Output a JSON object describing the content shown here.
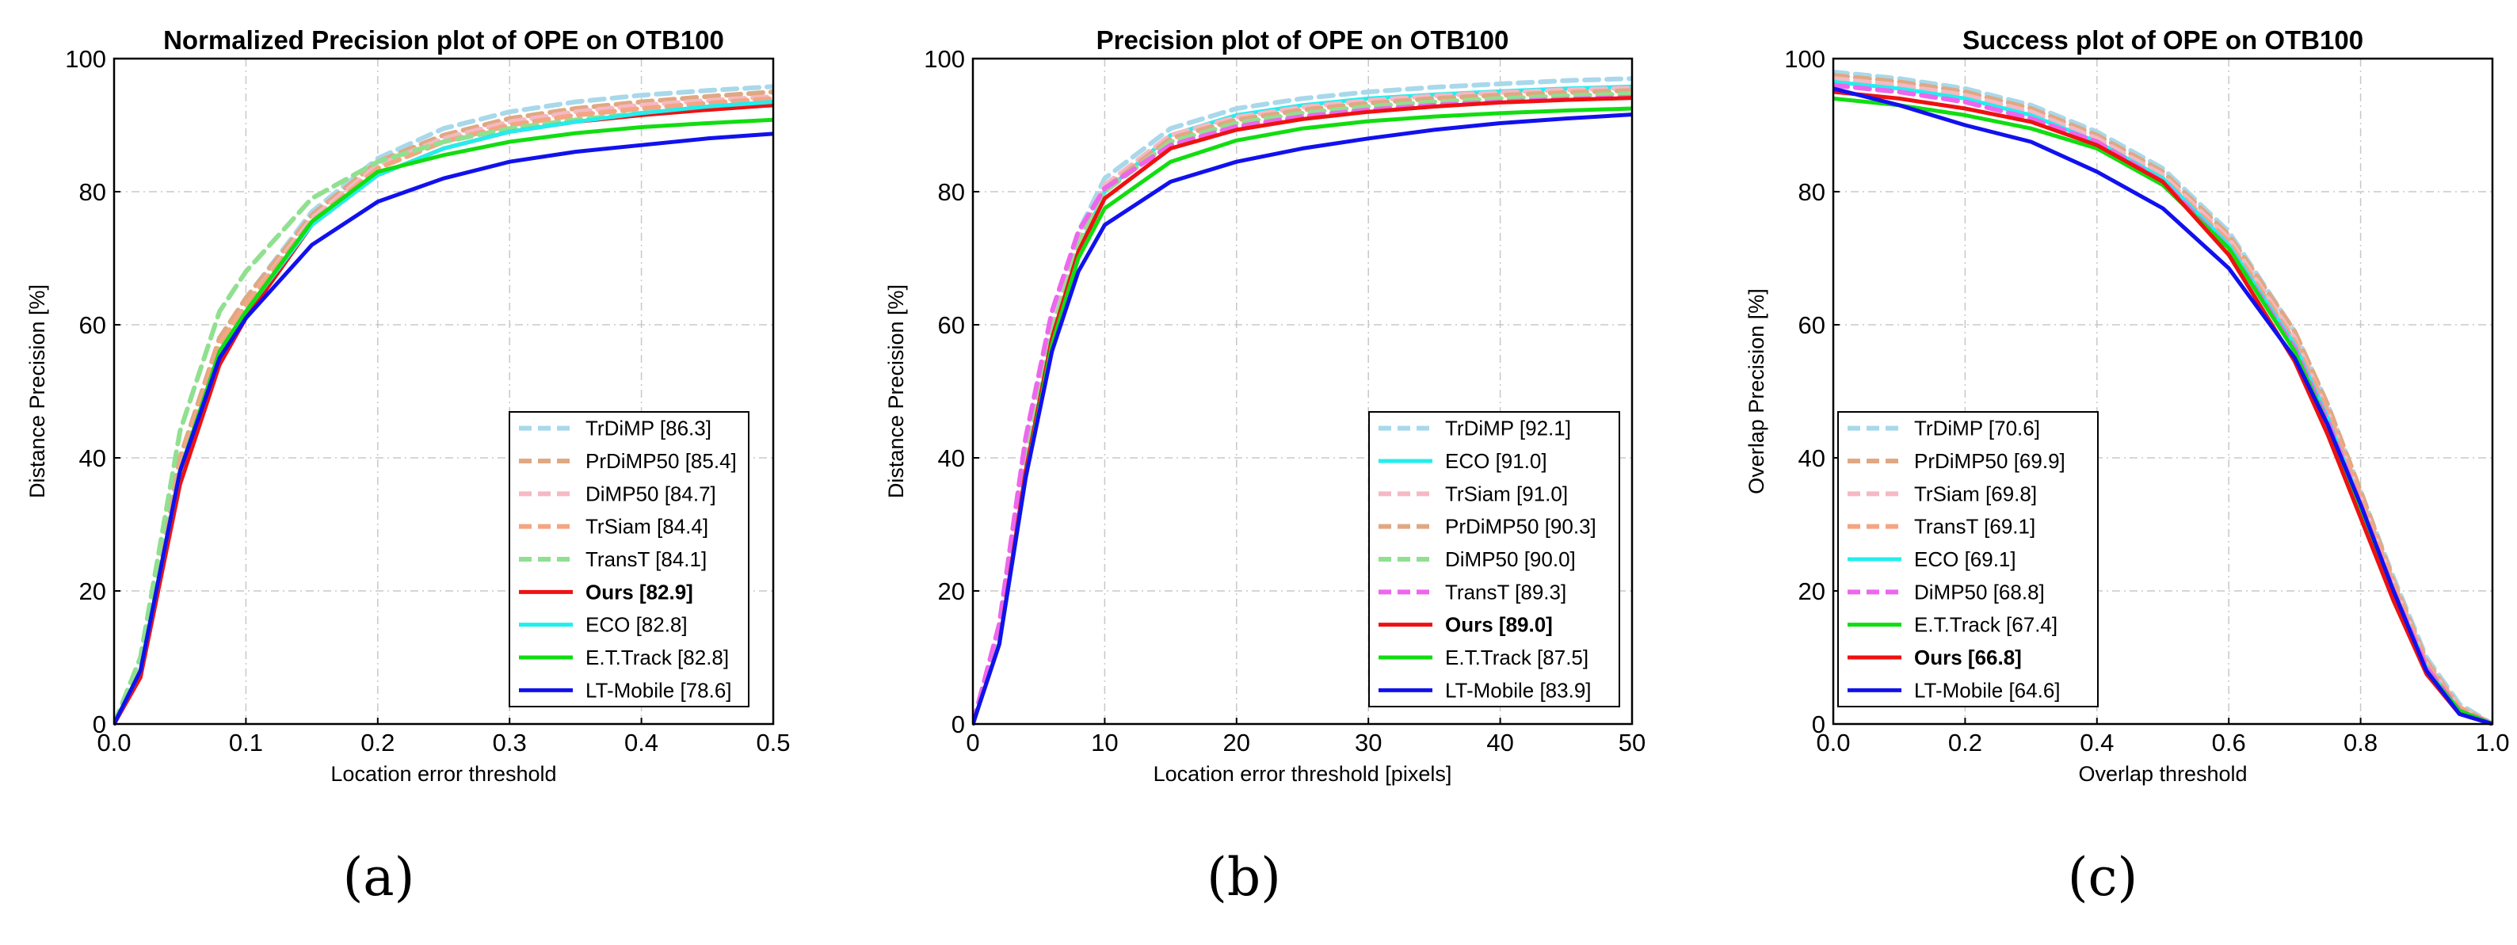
{
  "chart_data": [
    {
      "type": "line",
      "title": "Normalized Precision plot of OPE on OTB100",
      "xlabel": "Location error threshold",
      "ylabel": "Distance Precision [%]",
      "xlim": [
        0,
        0.5
      ],
      "ylim": [
        0,
        100
      ],
      "xticks": [
        0,
        0.1,
        0.2,
        0.3,
        0.4,
        0.5
      ],
      "xtick_labels": [
        "0.0",
        "0.1",
        "0.2",
        "0.3",
        "0.4",
        "0.5"
      ],
      "yticks": [
        0,
        20,
        40,
        60,
        80,
        100
      ],
      "ytick_labels": [
        "0",
        "20",
        "40",
        "60",
        "80",
        "100"
      ],
      "grid": true,
      "legend_position": "bottom-right",
      "caption": "(a)",
      "series": [
        {
          "name": "TrDiMP [86.3]",
          "color": "#a8d8ea",
          "dash": true,
          "bold": false,
          "x": [
            0,
            0.02,
            0.05,
            0.08,
            0.1,
            0.15,
            0.2,
            0.25,
            0.3,
            0.35,
            0.4,
            0.45,
            0.5
          ],
          "y": [
            0,
            8,
            40,
            58,
            64,
            77,
            85,
            89.5,
            92,
            93.5,
            94.5,
            95.2,
            95.8
          ]
        },
        {
          "name": "PrDiMP50 [85.4]",
          "color": "#e0a882",
          "dash": true,
          "bold": false,
          "x": [
            0,
            0.02,
            0.05,
            0.08,
            0.1,
            0.15,
            0.2,
            0.25,
            0.3,
            0.35,
            0.4,
            0.45,
            0.5
          ],
          "y": [
            0,
            8,
            40,
            58,
            64,
            76.5,
            84.5,
            88.5,
            91,
            92.5,
            93.5,
            94.3,
            95
          ]
        },
        {
          "name": "DiMP50 [84.7]",
          "color": "#f5b8c4",
          "dash": true,
          "bold": false,
          "x": [
            0,
            0.02,
            0.05,
            0.08,
            0.1,
            0.15,
            0.2,
            0.25,
            0.3,
            0.35,
            0.4,
            0.45,
            0.5
          ],
          "y": [
            0,
            8,
            39,
            57,
            63,
            76,
            84,
            88,
            90.5,
            92,
            93,
            93.7,
            94.3
          ]
        },
        {
          "name": "TrSiam [84.4]",
          "color": "#f4a582",
          "dash": true,
          "bold": false,
          "x": [
            0,
            0.02,
            0.05,
            0.08,
            0.1,
            0.15,
            0.2,
            0.25,
            0.3,
            0.35,
            0.4,
            0.45,
            0.5
          ],
          "y": [
            0,
            8,
            39,
            57,
            63,
            75.5,
            83.5,
            87.5,
            90,
            91.5,
            92.5,
            93.3,
            94
          ]
        },
        {
          "name": "TransT [84.1]",
          "color": "#90e090",
          "dash": true,
          "bold": false,
          "x": [
            0,
            0.02,
            0.05,
            0.08,
            0.1,
            0.15,
            0.2,
            0.25,
            0.3,
            0.35,
            0.4,
            0.45,
            0.5
          ],
          "y": [
            0,
            10,
            44,
            62,
            68,
            79,
            84.5,
            87.5,
            89.5,
            90.8,
            91.8,
            92.5,
            93
          ]
        },
        {
          "name": "Ours [82.9]",
          "color": "#ee1111",
          "dash": false,
          "bold": true,
          "x": [
            0,
            0.02,
            0.05,
            0.08,
            0.1,
            0.15,
            0.2,
            0.25,
            0.3,
            0.35,
            0.4,
            0.45,
            0.5
          ],
          "y": [
            0,
            7,
            36,
            54,
            61,
            75,
            82.5,
            86.5,
            89,
            90.5,
            91.5,
            92.3,
            93
          ]
        },
        {
          "name": "ECO [82.8]",
          "color": "#22eeee",
          "dash": false,
          "bold": false,
          "x": [
            0,
            0.02,
            0.05,
            0.08,
            0.1,
            0.15,
            0.2,
            0.25,
            0.3,
            0.35,
            0.4,
            0.45,
            0.5
          ],
          "y": [
            0,
            8,
            38,
            56,
            62,
            75,
            82.5,
            86.5,
            89,
            90.5,
            91.8,
            92.8,
            93.5
          ]
        },
        {
          "name": "E.T.Track [82.8]",
          "color": "#11dd11",
          "dash": false,
          "bold": false,
          "x": [
            0,
            0.02,
            0.05,
            0.08,
            0.1,
            0.15,
            0.2,
            0.25,
            0.3,
            0.35,
            0.4,
            0.45,
            0.5
          ],
          "y": [
            0,
            8,
            38,
            56,
            62,
            75.5,
            83,
            85.5,
            87.5,
            88.8,
            89.7,
            90.3,
            90.8
          ]
        },
        {
          "name": "LT-Mobile [78.6]",
          "color": "#1111ee",
          "dash": false,
          "bold": false,
          "x": [
            0,
            0.02,
            0.05,
            0.08,
            0.1,
            0.15,
            0.2,
            0.25,
            0.3,
            0.35,
            0.4,
            0.45,
            0.5
          ],
          "y": [
            0,
            8,
            38,
            55,
            61,
            72,
            78.5,
            82,
            84.5,
            86,
            87,
            88,
            88.7
          ]
        }
      ]
    },
    {
      "type": "line",
      "title": "Precision plot of OPE on OTB100",
      "xlabel": "Location error threshold [pixels]",
      "ylabel": "Distance Precision [%]",
      "xlim": [
        0,
        50
      ],
      "ylim": [
        0,
        100
      ],
      "xticks": [
        0,
        10,
        20,
        30,
        40,
        50
      ],
      "xtick_labels": [
        "0",
        "10",
        "20",
        "30",
        "40",
        "50"
      ],
      "yticks": [
        0,
        20,
        40,
        60,
        80,
        100
      ],
      "ytick_labels": [
        "0",
        "20",
        "40",
        "60",
        "80",
        "100"
      ],
      "grid": true,
      "legend_position": "bottom-right",
      "caption": "(b)",
      "series": [
        {
          "name": "TrDiMP [92.1]",
          "color": "#a8d8ea",
          "dash": true,
          "bold": false,
          "x": [
            0,
            2,
            4,
            6,
            8,
            10,
            15,
            20,
            25,
            30,
            35,
            40,
            45,
            50
          ],
          "y": [
            0,
            14,
            40,
            60,
            74,
            82,
            89.5,
            92.5,
            94,
            95,
            95.7,
            96.2,
            96.7,
            97
          ]
        },
        {
          "name": "ECO [91.0]",
          "color": "#22eeee",
          "dash": false,
          "bold": false,
          "x": [
            0,
            2,
            4,
            6,
            8,
            10,
            15,
            20,
            25,
            30,
            35,
            40,
            45,
            50
          ],
          "y": [
            0,
            12,
            37,
            57,
            71,
            80,
            88.5,
            91.5,
            93,
            94,
            94.6,
            95.1,
            95.5,
            95.8
          ]
        },
        {
          "name": "TrSiam [91.0]",
          "color": "#f5b8c4",
          "dash": true,
          "bold": false,
          "x": [
            0,
            2,
            4,
            6,
            8,
            10,
            15,
            20,
            25,
            30,
            35,
            40,
            45,
            50
          ],
          "y": [
            0,
            13,
            39,
            59,
            73,
            81,
            88.5,
            91.2,
            92.7,
            93.7,
            94.4,
            94.9,
            95.3,
            95.6
          ]
        },
        {
          "name": "PrDiMP50 [90.3]",
          "color": "#e0a882",
          "dash": true,
          "bold": false,
          "x": [
            0,
            2,
            4,
            6,
            8,
            10,
            15,
            20,
            25,
            30,
            35,
            40,
            45,
            50
          ],
          "y": [
            0,
            13,
            39,
            59,
            72,
            80.5,
            88,
            90.8,
            92.3,
            93.3,
            94,
            94.5,
            94.9,
            95.2
          ]
        },
        {
          "name": "DiMP50 [90.0]",
          "color": "#90e090",
          "dash": true,
          "bold": false,
          "x": [
            0,
            2,
            4,
            6,
            8,
            10,
            15,
            20,
            25,
            30,
            35,
            40,
            45,
            50
          ],
          "y": [
            0,
            13,
            39,
            59,
            72,
            80,
            87.5,
            90.3,
            91.8,
            92.8,
            93.5,
            94,
            94.4,
            94.7
          ]
        },
        {
          "name": "TransT [89.3]",
          "color": "#ee66ee",
          "dash": true,
          "bold": false,
          "x": [
            0,
            2,
            4,
            6,
            8,
            10,
            15,
            20,
            25,
            30,
            35,
            40,
            45,
            50
          ],
          "y": [
            0,
            15,
            43,
            62,
            74,
            80.5,
            87,
            89.8,
            91.3,
            92.3,
            93,
            93.5,
            93.9,
            94.2
          ]
        },
        {
          "name": "Ours [89.0]",
          "color": "#ee1111",
          "dash": false,
          "bold": true,
          "x": [
            0,
            2,
            4,
            6,
            8,
            10,
            15,
            20,
            25,
            30,
            35,
            40,
            45,
            50
          ],
          "y": [
            0,
            12,
            38,
            58,
            71,
            79,
            86.5,
            89.3,
            90.9,
            92,
            92.8,
            93.4,
            93.8,
            94.1
          ]
        },
        {
          "name": "E.T.Track [87.5]",
          "color": "#11dd11",
          "dash": false,
          "bold": false,
          "x": [
            0,
            2,
            4,
            6,
            8,
            10,
            15,
            20,
            25,
            30,
            35,
            40,
            45,
            50
          ],
          "y": [
            0,
            12,
            37,
            57,
            70,
            77.5,
            84.5,
            87.7,
            89.5,
            90.6,
            91.3,
            91.8,
            92.2,
            92.5
          ]
        },
        {
          "name": "LT-Mobile [83.9]",
          "color": "#1111ee",
          "dash": false,
          "bold": false,
          "x": [
            0,
            2,
            4,
            6,
            8,
            10,
            15,
            20,
            25,
            30,
            35,
            40,
            45,
            50
          ],
          "y": [
            0,
            12,
            37,
            56,
            68,
            75,
            81.5,
            84.5,
            86.5,
            88,
            89.3,
            90.3,
            91,
            91.6
          ]
        }
      ]
    },
    {
      "type": "line",
      "title": "Success plot of OPE on OTB100",
      "xlabel": "Overlap threshold",
      "ylabel": "Overlap Precision [%]",
      "xlim": [
        0,
        1
      ],
      "ylim": [
        0,
        100
      ],
      "xticks": [
        0,
        0.2,
        0.4,
        0.6,
        0.8,
        1.0
      ],
      "xtick_labels": [
        "0.0",
        "0.2",
        "0.4",
        "0.6",
        "0.8",
        "1.0"
      ],
      "yticks": [
        0,
        20,
        40,
        60,
        80,
        100
      ],
      "ytick_labels": [
        "0",
        "20",
        "40",
        "60",
        "80",
        "100"
      ],
      "grid": true,
      "legend_position": "bottom-left",
      "caption": "(c)",
      "series": [
        {
          "name": "TrDiMP [70.6]",
          "color": "#a8d8ea",
          "dash": true,
          "bold": false,
          "x": [
            0,
            0.1,
            0.2,
            0.3,
            0.4,
            0.5,
            0.6,
            0.7,
            0.75,
            0.8,
            0.85,
            0.9,
            0.95,
            1.0
          ],
          "y": [
            98,
            97,
            95.5,
            93,
            89,
            83.5,
            74,
            59,
            48,
            35,
            22,
            10,
            3,
            0
          ]
        },
        {
          "name": "PrDiMP50 [69.9]",
          "color": "#e0a882",
          "dash": true,
          "bold": false,
          "x": [
            0,
            0.1,
            0.2,
            0.3,
            0.4,
            0.5,
            0.6,
            0.7,
            0.75,
            0.8,
            0.85,
            0.9,
            0.95,
            1.0
          ],
          "y": [
            97.5,
            96.5,
            95,
            92.5,
            88.5,
            83,
            73.5,
            59,
            48,
            35,
            21.5,
            9.5,
            2.5,
            0
          ]
        },
        {
          "name": "TrSiam [69.8]",
          "color": "#f5b8c4",
          "dash": true,
          "bold": false,
          "x": [
            0,
            0.1,
            0.2,
            0.3,
            0.4,
            0.5,
            0.6,
            0.7,
            0.75,
            0.8,
            0.85,
            0.9,
            0.95,
            1.0
          ],
          "y": [
            97,
            96,
            94.5,
            92,
            88,
            82.5,
            73,
            58,
            47,
            34,
            21,
            9,
            2.5,
            0
          ]
        },
        {
          "name": "TransT [69.1]",
          "color": "#f4a582",
          "dash": true,
          "bold": false,
          "x": [
            0,
            0.1,
            0.2,
            0.3,
            0.4,
            0.5,
            0.6,
            0.7,
            0.75,
            0.8,
            0.85,
            0.9,
            0.95,
            1.0
          ],
          "y": [
            96,
            95,
            93.5,
            91,
            87.5,
            82,
            72.5,
            57.5,
            47,
            34,
            21,
            9,
            2.5,
            0
          ]
        },
        {
          "name": "ECO [69.1]",
          "color": "#22eeee",
          "dash": false,
          "bold": false,
          "x": [
            0,
            0.1,
            0.2,
            0.3,
            0.4,
            0.5,
            0.6,
            0.7,
            0.75,
            0.8,
            0.85,
            0.9,
            0.95,
            1.0
          ],
          "y": [
            96.5,
            95.5,
            94,
            91.5,
            87.5,
            82,
            72,
            57,
            46,
            33,
            20,
            8.5,
            2,
            0
          ]
        },
        {
          "name": "DiMP50 [68.8]",
          "color": "#ee66ee",
          "dash": true,
          "bold": false,
          "x": [
            0,
            0.1,
            0.2,
            0.3,
            0.4,
            0.5,
            0.6,
            0.7,
            0.75,
            0.8,
            0.85,
            0.9,
            0.95,
            1.0
          ],
          "y": [
            96,
            95,
            93.5,
            91,
            87.5,
            81.5,
            71.5,
            56.5,
            45.5,
            33,
            20,
            8.5,
            2,
            0
          ]
        },
        {
          "name": "E.T.Track [67.4]",
          "color": "#11dd11",
          "dash": false,
          "bold": false,
          "x": [
            0,
            0.1,
            0.2,
            0.3,
            0.4,
            0.5,
            0.6,
            0.7,
            0.75,
            0.8,
            0.85,
            0.9,
            0.95,
            1.0
          ],
          "y": [
            94,
            93,
            91.5,
            89.5,
            86.5,
            81,
            71.5,
            56,
            45,
            32,
            19,
            8,
            2,
            0
          ]
        },
        {
          "name": "Ours [66.8]",
          "color": "#ee1111",
          "dash": false,
          "bold": true,
          "x": [
            0,
            0.1,
            0.2,
            0.3,
            0.4,
            0.5,
            0.6,
            0.7,
            0.75,
            0.8,
            0.85,
            0.9,
            0.95,
            1.0
          ],
          "y": [
            95,
            94,
            92.5,
            90.5,
            87,
            81.5,
            70.5,
            54.5,
            43.5,
            31,
            18.5,
            7.5,
            1.5,
            0
          ]
        },
        {
          "name": "LT-Mobile [64.6]",
          "color": "#1111ee",
          "dash": false,
          "bold": false,
          "x": [
            0,
            0.1,
            0.2,
            0.3,
            0.4,
            0.5,
            0.6,
            0.7,
            0.75,
            0.8,
            0.85,
            0.9,
            0.95,
            1.0
          ],
          "y": [
            95.5,
            93,
            90,
            87.5,
            83,
            77.5,
            68.5,
            55,
            45,
            33,
            20,
            8,
            1.5,
            0
          ]
        }
      ]
    }
  ]
}
